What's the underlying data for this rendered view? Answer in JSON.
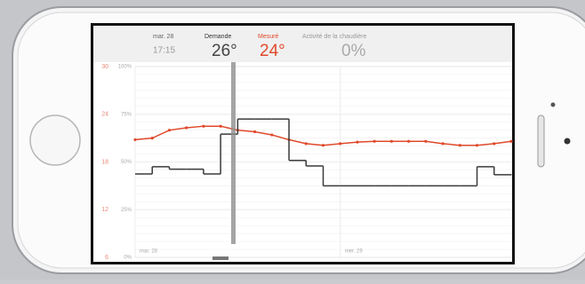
{
  "header": {
    "date": "mar. 28",
    "time": "17:15",
    "demand_label": "Demande",
    "demand_value": "26°",
    "measured_label": "Mesuré",
    "measured_value": "24°",
    "boiler_label": "Activité de la chaudière",
    "boiler_value": "0%"
  },
  "chart_data": {
    "type": "line",
    "categories": [
      "mar. 28",
      null,
      null,
      null,
      null,
      null,
      null,
      null,
      null,
      null,
      null,
      null,
      "mer. 29",
      null,
      null,
      null,
      null,
      null,
      null,
      null,
      null,
      null,
      null
    ],
    "series": [
      {
        "name": "Mesuré",
        "color": "#e0492b",
        "values": [
          20.8,
          21,
          22,
          22.3,
          22.5,
          22.5,
          22,
          21.8,
          21.4,
          20.8,
          20.3,
          20.1,
          20.3,
          20.5,
          20.6,
          20.6,
          20.6,
          20.6,
          20.3,
          20.1,
          20.1,
          20.3,
          20.6
        ]
      },
      {
        "name": "Demande",
        "color": "#3a3a3a",
        "values": [
          16.5,
          17.4,
          17.1,
          17.1,
          16.5,
          21.5,
          23.4,
          23.4,
          23.4,
          18.2,
          17.5,
          15,
          15,
          15,
          15,
          15,
          15,
          15,
          15,
          15,
          17.4,
          16.4,
          16.4
        ]
      }
    ],
    "ylim": [
      6,
      30
    ],
    "yticks": [
      6,
      12,
      18,
      24,
      30
    ],
    "y2lim": [
      0,
      100
    ],
    "y2ticks": [
      {
        "value": 0,
        "label": "0%"
      },
      {
        "value": 25,
        "label": "25%"
      },
      {
        "value": 50,
        "label": "50%"
      },
      {
        "value": 75,
        "label": "75%"
      },
      {
        "value": 100,
        "label": "100%"
      }
    ],
    "grid": true
  }
}
